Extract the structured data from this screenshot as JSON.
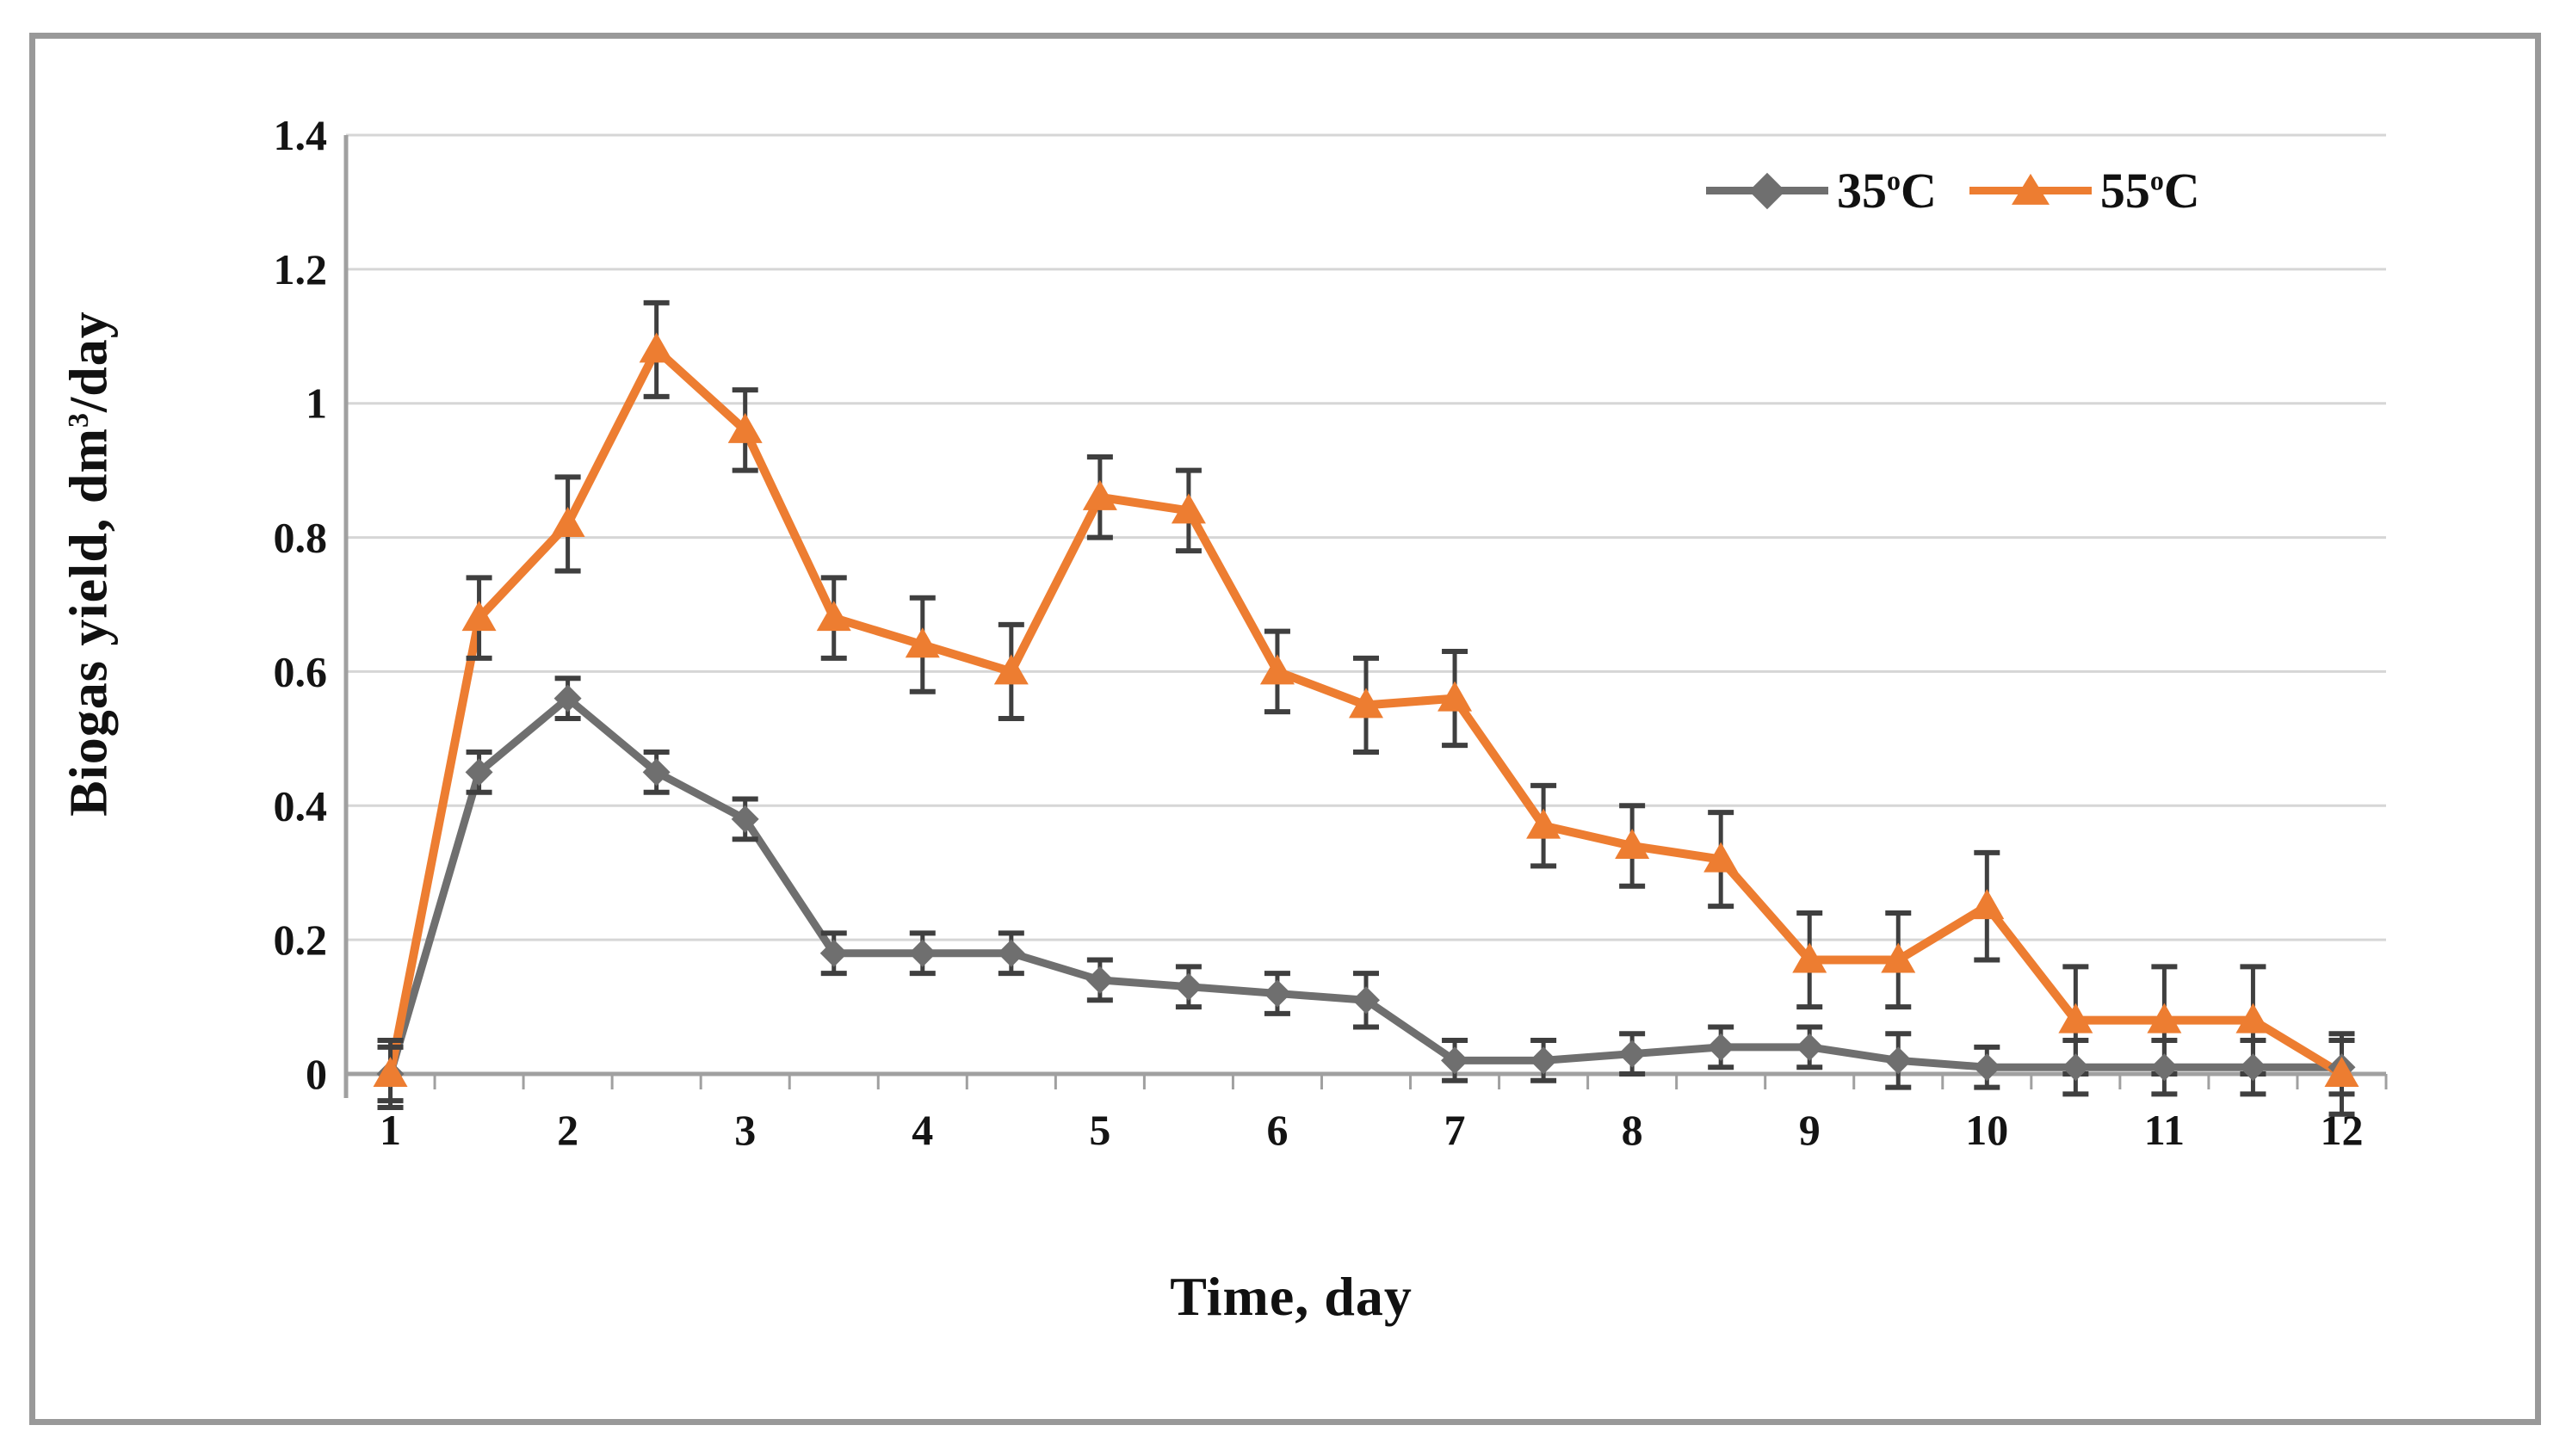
{
  "figure": {
    "background": "#ffffff",
    "border_color": "#999999"
  },
  "chart_data": {
    "type": "line",
    "xlabel": "Time, day",
    "xlabel_parts": {
      "base": "Time, day"
    },
    "ylabel": "Biogas yield, dm³/day",
    "ylabel_parts": {
      "base": "Biogas yield, dm",
      "sup": "3",
      "rest": "/day"
    },
    "xlim": [
      0.75,
      12.25
    ],
    "ylim": [
      0,
      1.4
    ],
    "grid": "horizontal",
    "gridline_color": "#d6d6d6",
    "axis_color": "#a0a0a0",
    "error_bar_color": "#3f3f3f",
    "legend_position": "top-right-inside",
    "x": [
      1,
      1.5,
      2,
      2.5,
      3,
      3.5,
      4,
      4.5,
      5,
      5.5,
      6,
      6.5,
      7,
      7.5,
      8,
      8.5,
      9,
      9.5,
      10,
      10.5,
      11,
      11.5,
      12
    ],
    "x_axis_label_values": [
      1,
      2,
      3,
      4,
      5,
      6,
      7,
      8,
      9,
      10,
      11,
      12
    ],
    "x_tick_labels": [
      "1",
      "2",
      "3",
      "4",
      "5",
      "6",
      "7",
      "8",
      "9",
      "10",
      "11",
      "12"
    ],
    "x_minor_tick_step": 0.5,
    "y_ticks": [
      0,
      0.2,
      0.4,
      0.6,
      0.8,
      1,
      1.2,
      1.4
    ],
    "y_tick_labels": [
      "0",
      "0.2",
      "0.4",
      "0.6",
      "0.8",
      "1",
      "1.2",
      "1.4"
    ],
    "series": [
      {
        "name": "35°C",
        "legend_value": "35",
        "legend_sup": "o",
        "legend_unit": "C",
        "color": "#6f6f6f",
        "marker": "diamond",
        "values": [
          0,
          0.45,
          0.56,
          0.45,
          0.38,
          0.18,
          0.18,
          0.18,
          0.14,
          0.13,
          0.12,
          0.11,
          0.02,
          0.02,
          0.03,
          0.04,
          0.04,
          0.02,
          0.01,
          0.01,
          0.01,
          0.01,
          0.01
        ],
        "errors": [
          0.04,
          0.03,
          0.03,
          0.03,
          0.03,
          0.03,
          0.03,
          0.03,
          0.03,
          0.03,
          0.03,
          0.04,
          0.03,
          0.03,
          0.03,
          0.03,
          0.03,
          0.04,
          0.03,
          0.04,
          0.04,
          0.04,
          0.04
        ]
      },
      {
        "name": "55°C",
        "legend_value": "55",
        "legend_sup": "o",
        "legend_unit": "C",
        "color": "#ed7d31",
        "marker": "triangle",
        "values": [
          0,
          0.68,
          0.82,
          1.08,
          0.96,
          0.68,
          0.64,
          0.6,
          0.86,
          0.84,
          0.6,
          0.55,
          0.56,
          0.37,
          0.34,
          0.32,
          0.17,
          0.17,
          0.25,
          0.08,
          0.08,
          0.08,
          0
        ],
        "errors": [
          0.05,
          0.06,
          0.07,
          0.07,
          0.06,
          0.06,
          0.07,
          0.07,
          0.06,
          0.06,
          0.06,
          0.07,
          0.07,
          0.06,
          0.06,
          0.07,
          0.07,
          0.07,
          0.08,
          0.08,
          0.08,
          0.08,
          0.06
        ]
      }
    ]
  }
}
